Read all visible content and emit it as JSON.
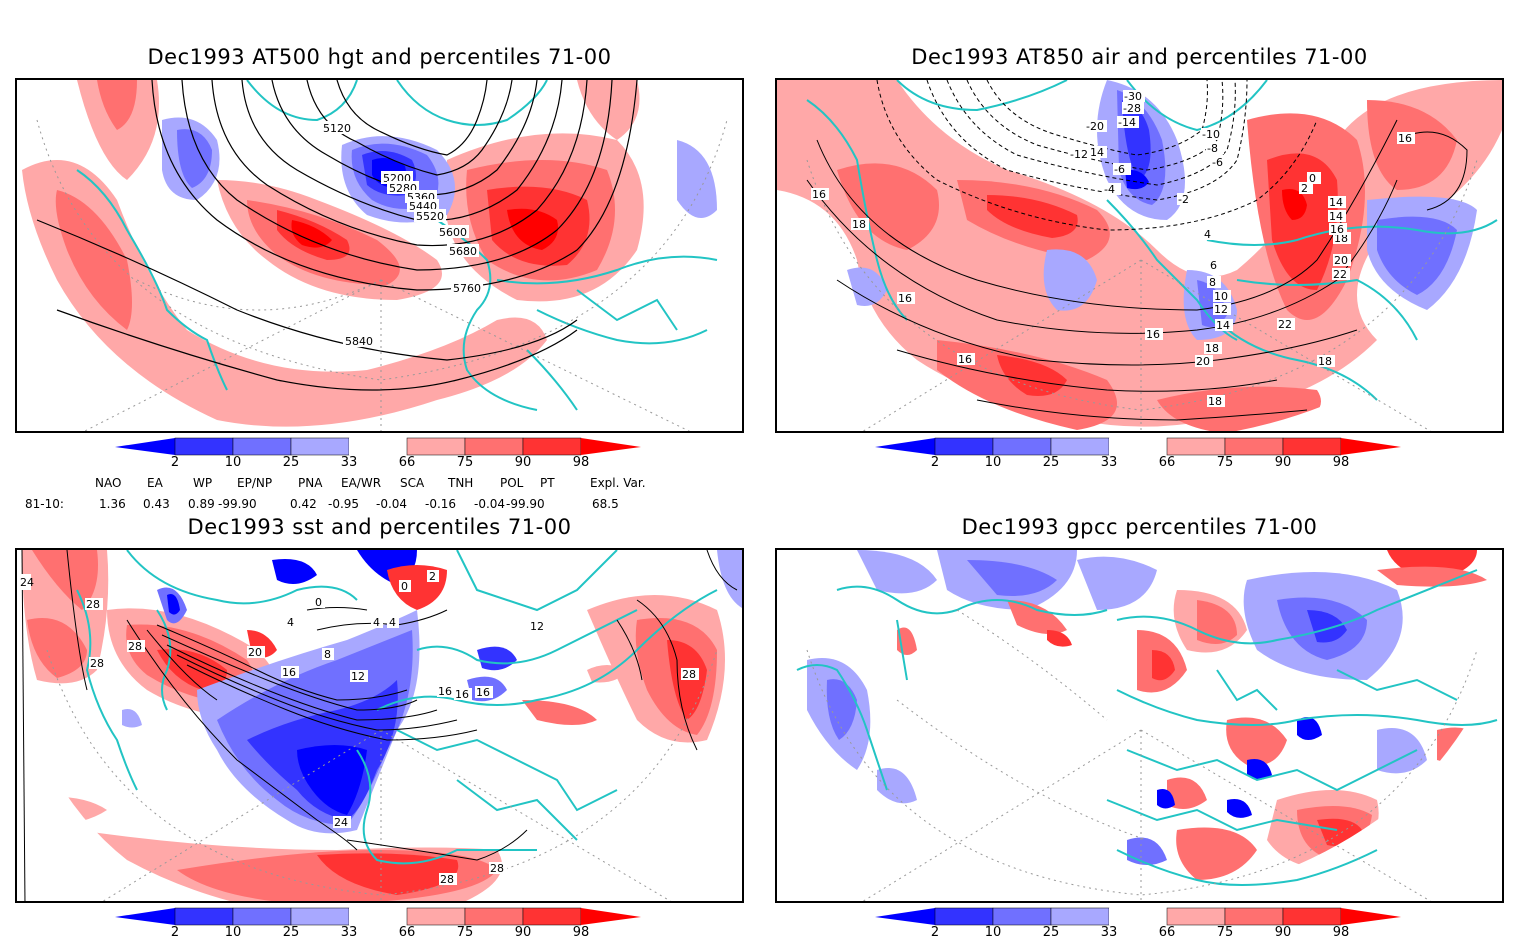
{
  "colors": {
    "p2": "#0000ff",
    "p10": "#3333ff",
    "p25": "#7070ff",
    "p33": "#a8a8ff",
    "p66": "#ffa8a8",
    "p75": "#ff7070",
    "p90": "#ff3333",
    "p98": "#ff0000",
    "coast": "#22c4c4",
    "contour": "#000000"
  },
  "colorbar": {
    "labels": [
      "2",
      "10",
      "25",
      "33",
      "66",
      "75",
      "90",
      "98"
    ]
  },
  "panels": [
    {
      "title": "Dec1993 AT500 hgt and percentiles 71-00",
      "contour_labels": [
        "5120",
        "5200",
        "5280",
        "5360",
        "5440",
        "5520",
        "5600",
        "5680",
        "5760",
        "5840"
      ]
    },
    {
      "title": "Dec1993 AT850 air and percentiles 71-00",
      "contour_labels": [
        "-30",
        "-28",
        "-20",
        "-14",
        "-12",
        "14",
        "-10",
        "-8",
        "-6",
        "-6",
        "-4",
        "-2",
        "0",
        "2",
        "4",
        "6",
        "8",
        "10",
        "12",
        "14",
        "16",
        "16",
        "16",
        "18",
        "18",
        "18",
        "18",
        "20",
        "20",
        "22",
        "22",
        "14",
        "14",
        "16",
        "18",
        "16",
        "16"
      ]
    },
    {
      "title": "Dec1993 sst and percentiles 71-00",
      "contour_labels": [
        "24",
        "28",
        "28",
        "28",
        "20",
        "0",
        "0",
        "4",
        "4",
        "8",
        "12",
        "16",
        "16",
        "16",
        "16",
        "4",
        "2",
        "12",
        "24",
        "28",
        "28",
        "28"
      ]
    },
    {
      "title": "Dec1993 gpcc percentiles 71-00",
      "contour_labels": []
    }
  ],
  "teleconnections": {
    "headers": [
      "NAO",
      "EA",
      "WP",
      "EP/NP",
      "PNA",
      "EA/WR",
      "SCA",
      "TNH",
      "POL",
      "PT",
      "Expl. Var."
    ],
    "row_label": "81-10:",
    "values": [
      "1.36",
      "0.43",
      "0.89",
      "-99.90",
      "0.42",
      "-0.95",
      "-0.04",
      "-0.16",
      "-0.04",
      "-99.90",
      "68.5"
    ]
  }
}
